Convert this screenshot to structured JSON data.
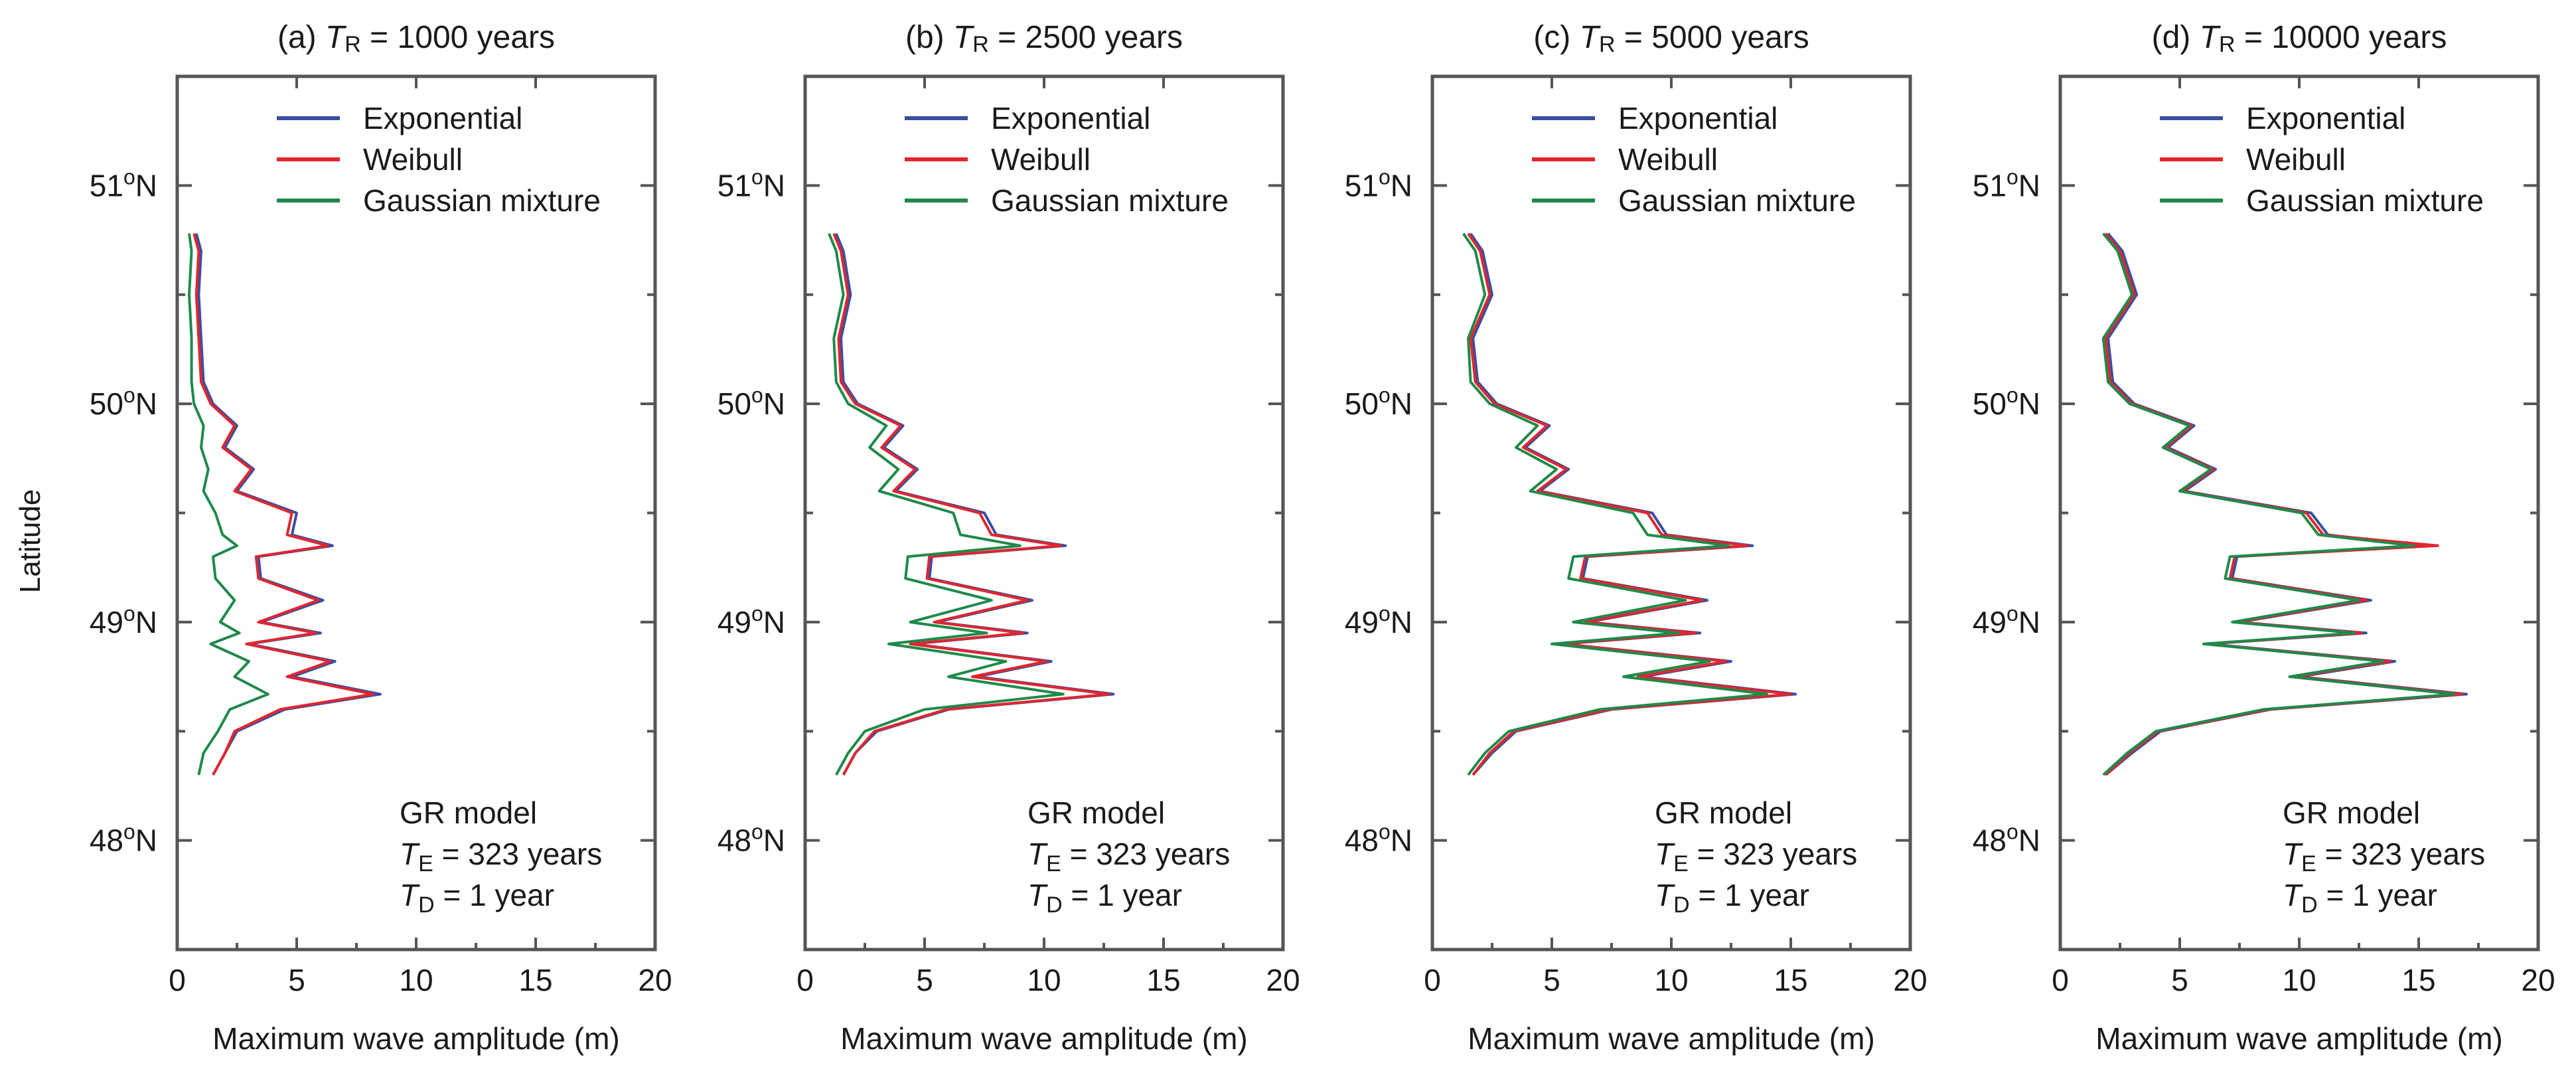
{
  "figure": {
    "ylabel": "Latitude",
    "xlabel": "Maximum wave amplitude (m)",
    "x_ticks": [
      0,
      5,
      10,
      15,
      20
    ],
    "y_ticks": [
      {
        "value": 48,
        "label_main": "48",
        "label_sup": "o",
        "label_suffix": "N"
      },
      {
        "value": 49,
        "label_main": "49",
        "label_sup": "o",
        "label_suffix": "N"
      },
      {
        "value": 50,
        "label_main": "50",
        "label_sup": "o",
        "label_suffix": "N"
      },
      {
        "value": 51,
        "label_main": "51",
        "label_sup": "o",
        "label_suffix": "N"
      }
    ],
    "annotation": {
      "line1": "GR model",
      "line2_T": "T",
      "line2_sub": "E",
      "line2_rest": " = 323 years",
      "line3_T": "T",
      "line3_sub": "D",
      "line3_rest": " = 1 year"
    },
    "colors": {
      "Exponential": "#3a4fa0",
      "Weibull": "#e0262f",
      "Gaussian mixture": "#1e8a4a"
    }
  },
  "chart_data": [
    {
      "type": "line",
      "panel": "(a)",
      "title_prefix": "(a)",
      "title_T": "T",
      "title_sub": "R",
      "title_rest": " = 1000 years",
      "xlabel": "Maximum wave amplitude (m)",
      "ylabel": "Latitude",
      "xlim": [
        0,
        20
      ],
      "ylim": [
        47.5,
        51.5
      ],
      "legend": "top-right",
      "lat": [
        48.3,
        48.4,
        48.5,
        48.6,
        48.67,
        48.75,
        48.82,
        48.9,
        48.95,
        49.0,
        49.1,
        49.2,
        49.3,
        49.35,
        49.4,
        49.5,
        49.6,
        49.7,
        49.8,
        49.9,
        50.0,
        50.1,
        50.3,
        50.5,
        50.7,
        50.78
      ],
      "series": [
        {
          "name": "Exponential",
          "values": [
            1.5,
            2.0,
            2.5,
            4.5,
            8.5,
            4.8,
            6.6,
            3.0,
            6.0,
            3.5,
            6.1,
            3.5,
            3.4,
            6.5,
            4.8,
            5.0,
            2.5,
            3.2,
            2.0,
            2.5,
            1.5,
            1.1,
            1.0,
            0.9,
            1.0,
            0.8
          ]
        },
        {
          "name": "Weibull",
          "values": [
            1.5,
            2.0,
            2.4,
            4.3,
            8.2,
            4.6,
            6.4,
            2.9,
            5.8,
            3.4,
            5.9,
            3.4,
            3.3,
            6.3,
            4.6,
            4.8,
            2.4,
            3.1,
            1.9,
            2.4,
            1.4,
            1.0,
            0.9,
            0.8,
            0.9,
            0.7
          ]
        },
        {
          "name": "Gaussian mixture",
          "values": [
            0.9,
            1.1,
            1.7,
            2.2,
            3.8,
            2.4,
            3.0,
            1.4,
            2.6,
            1.8,
            2.4,
            1.6,
            1.5,
            2.5,
            1.9,
            1.6,
            1.1,
            1.3,
            1.0,
            1.1,
            0.7,
            0.6,
            0.6,
            0.5,
            0.6,
            0.5
          ]
        }
      ]
    },
    {
      "type": "line",
      "panel": "(b)",
      "title_prefix": "(b)",
      "title_T": "T",
      "title_sub": "R",
      "title_rest": " = 2500 years",
      "xlabel": "Maximum wave amplitude (m)",
      "ylabel": "Latitude",
      "xlim": [
        0,
        20
      ],
      "ylim": [
        47.5,
        51.5
      ],
      "legend": "top-right",
      "lat": [
        48.3,
        48.4,
        48.5,
        48.6,
        48.67,
        48.75,
        48.82,
        48.9,
        48.95,
        49.0,
        49.1,
        49.2,
        49.3,
        49.35,
        49.4,
        49.5,
        49.6,
        49.7,
        49.8,
        49.9,
        50.0,
        50.1,
        50.3,
        50.5,
        50.7,
        50.78
      ],
      "series": [
        {
          "name": "Exponential",
          "values": [
            1.6,
            2.1,
            3.0,
            6.0,
            12.9,
            7.2,
            10.3,
            4.5,
            9.3,
            5.5,
            9.5,
            5.2,
            5.3,
            10.9,
            8.0,
            7.5,
            3.8,
            4.7,
            3.3,
            4.1,
            2.2,
            1.6,
            1.5,
            1.9,
            1.6,
            1.3
          ]
        },
        {
          "name": "Weibull",
          "values": [
            1.6,
            2.1,
            2.9,
            5.9,
            12.7,
            7.0,
            10.1,
            4.4,
            9.1,
            5.4,
            9.3,
            5.1,
            5.2,
            10.7,
            7.8,
            7.3,
            3.7,
            4.6,
            3.2,
            4.0,
            2.1,
            1.5,
            1.4,
            1.8,
            1.5,
            1.2
          ]
        },
        {
          "name": "Gaussian mixture",
          "values": [
            1.3,
            1.8,
            2.5,
            5.0,
            10.8,
            6.0,
            8.4,
            3.5,
            7.6,
            4.4,
            7.8,
            4.2,
            4.3,
            9.0,
            6.5,
            6.2,
            3.1,
            3.9,
            2.7,
            3.4,
            1.8,
            1.3,
            1.2,
            1.6,
            1.3,
            1.0
          ]
        }
      ]
    },
    {
      "type": "line",
      "panel": "(c)",
      "title_prefix": "(c)",
      "title_T": "T",
      "title_sub": "R",
      "title_rest": " = 5000 years",
      "xlabel": "Maximum wave amplitude (m)",
      "ylabel": "Latitude",
      "xlim": [
        0,
        20
      ],
      "ylim": [
        47.5,
        51.5
      ],
      "legend": "top-right",
      "lat": [
        48.3,
        48.4,
        48.5,
        48.6,
        48.67,
        48.75,
        48.82,
        48.9,
        48.95,
        49.0,
        49.1,
        49.2,
        49.3,
        49.35,
        49.4,
        49.5,
        49.6,
        49.7,
        49.8,
        49.9,
        50.0,
        50.1,
        50.3,
        50.5,
        50.7,
        50.78
      ],
      "series": [
        {
          "name": "Exponential",
          "values": [
            1.7,
            2.5,
            3.5,
            7.5,
            15.2,
            8.8,
            12.5,
            5.5,
            11.2,
            6.5,
            11.5,
            6.3,
            6.5,
            13.4,
            9.8,
            9.2,
            4.5,
            5.7,
            3.9,
            4.9,
            2.7,
            1.9,
            1.7,
            2.5,
            2.1,
            1.6
          ]
        },
        {
          "name": "Weibull",
          "values": [
            1.7,
            2.4,
            3.4,
            7.4,
            15.0,
            8.6,
            12.3,
            5.4,
            11.0,
            6.4,
            11.3,
            6.2,
            6.4,
            13.2,
            9.6,
            9.0,
            4.4,
            5.6,
            3.8,
            4.8,
            2.6,
            1.8,
            1.6,
            2.4,
            2.0,
            1.5
          ]
        },
        {
          "name": "Gaussian mixture",
          "values": [
            1.5,
            2.2,
            3.2,
            7.0,
            14.0,
            8.0,
            11.6,
            5.0,
            10.3,
            5.9,
            10.6,
            5.7,
            5.9,
            12.4,
            9.0,
            8.4,
            4.1,
            5.2,
            3.5,
            4.4,
            2.4,
            1.6,
            1.5,
            2.2,
            1.8,
            1.3
          ]
        }
      ]
    },
    {
      "type": "line",
      "panel": "(d)",
      "title_prefix": "(d)",
      "title_T": "T",
      "title_sub": "R",
      "title_rest": " = 10000 years",
      "xlabel": "Maximum wave amplitude (m)",
      "ylabel": "Latitude",
      "xlim": [
        0,
        20
      ],
      "ylim": [
        47.5,
        51.5
      ],
      "legend": "top-right",
      "lat": [
        48.3,
        48.4,
        48.5,
        48.6,
        48.67,
        48.75,
        48.82,
        48.9,
        48.95,
        49.0,
        49.1,
        49.2,
        49.3,
        49.35,
        49.4,
        49.5,
        49.6,
        49.7,
        49.8,
        49.9,
        50.0,
        50.1,
        50.3,
        50.5,
        50.7,
        50.78
      ],
      "series": [
        {
          "name": "Exponential",
          "values": [
            1.9,
            3.0,
            4.2,
            8.8,
            17.0,
            10.0,
            14.0,
            6.2,
            12.8,
            7.5,
            13.0,
            7.2,
            7.4,
            15.1,
            11.2,
            10.5,
            5.2,
            6.5,
            4.5,
            5.6,
            3.1,
            2.2,
            2.0,
            3.2,
            2.6,
            2.0
          ]
        },
        {
          "name": "Weibull",
          "values": [
            1.9,
            2.9,
            4.1,
            8.7,
            16.8,
            9.8,
            13.8,
            6.1,
            12.6,
            7.4,
            12.8,
            7.1,
            7.3,
            15.8,
            11.0,
            10.3,
            5.1,
            6.4,
            4.4,
            5.5,
            3.0,
            2.1,
            1.9,
            3.1,
            2.5,
            1.9
          ]
        },
        {
          "name": "Gaussian mixture",
          "values": [
            1.8,
            2.8,
            4.0,
            8.5,
            16.5,
            9.6,
            13.5,
            6.0,
            12.3,
            7.2,
            12.5,
            6.9,
            7.1,
            14.8,
            10.8,
            10.1,
            5.0,
            6.3,
            4.3,
            5.4,
            2.9,
            2.0,
            1.8,
            3.0,
            2.4,
            1.8
          ]
        }
      ]
    }
  ]
}
